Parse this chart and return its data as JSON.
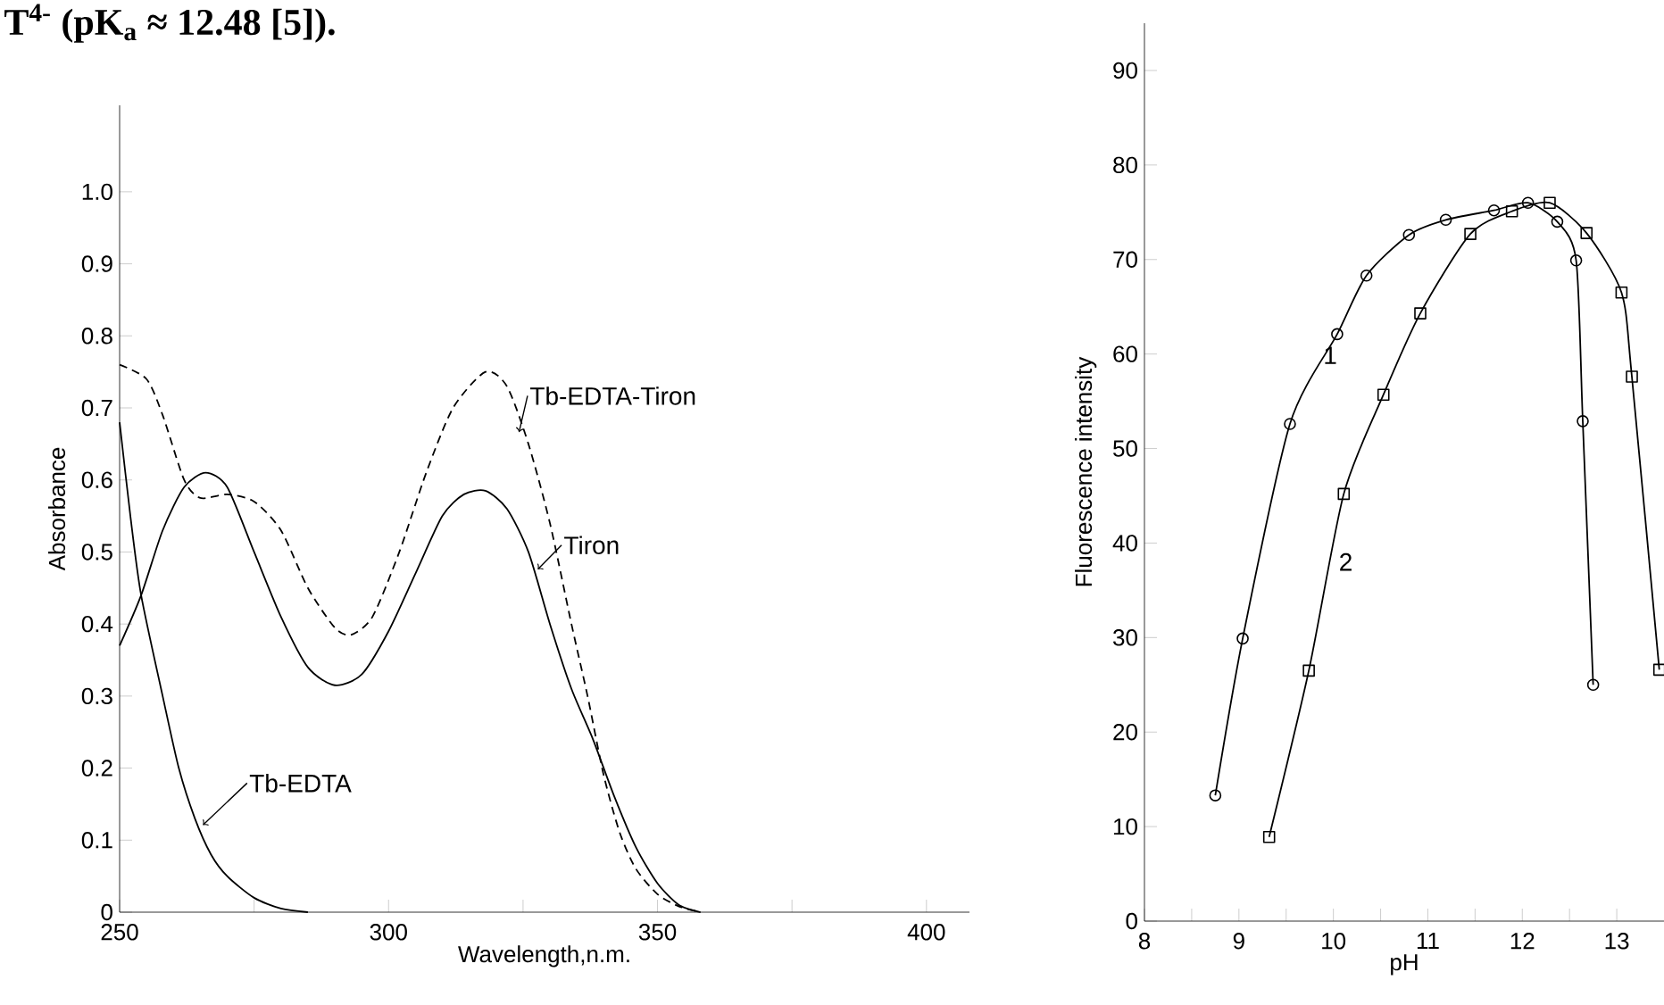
{
  "chart_data": [
    {
      "type": "line",
      "annotations": [
        "T$^{4-}$ (pK$_{a}$ ≈ 12.48 [5])."
      ],
      "xlabel": "Wavelength,n.m.",
      "ylabel": "Absorbance",
      "xlim": [
        250,
        408
      ],
      "xticks": [
        250,
        {
          "value": 275,
          "label": null
        },
        300,
        {
          "value": 325,
          "label": null
        },
        350,
        {
          "value": 375,
          "label": null
        },
        400
      ],
      "ylim": [
        0,
        1.12
      ],
      "yticks": [
        0,
        0.1,
        0.2,
        0.3,
        0.4,
        0.5,
        0.6,
        0.7,
        0.8,
        0.9,
        {
          "value": 1.0,
          "label": "1.0"
        }
      ],
      "series": [
        {
          "name": "Tb-EDTA-Tiron",
          "color": "#000000",
          "line_style": "dashed",
          "x": [
            250,
            255,
            258,
            262,
            265,
            270,
            275,
            280,
            285,
            290,
            293,
            297,
            302,
            307,
            312,
            318,
            322,
            326,
            330,
            334,
            337,
            340,
            343,
            346,
            350,
            354,
            358
          ],
          "values": [
            0.76,
            0.74,
            0.69,
            0.6,
            0.575,
            0.58,
            0.57,
            0.53,
            0.45,
            0.395,
            0.385,
            0.41,
            0.5,
            0.61,
            0.7,
            0.75,
            0.73,
            0.65,
            0.54,
            0.4,
            0.3,
            0.19,
            0.11,
            0.06,
            0.025,
            0.008,
            0
          ]
        },
        {
          "name": "Tiron",
          "color": "#000000",
          "line_style": "solid",
          "x": [
            250,
            254,
            258,
            262,
            266,
            270,
            275,
            280,
            285,
            290,
            295,
            300,
            305,
            310,
            314,
            318,
            322,
            326,
            330,
            334,
            338,
            342,
            346,
            350,
            354,
            358
          ],
          "values": [
            0.37,
            0.44,
            0.53,
            0.59,
            0.61,
            0.59,
            0.5,
            0.41,
            0.34,
            0.315,
            0.33,
            0.39,
            0.47,
            0.55,
            0.58,
            0.585,
            0.56,
            0.5,
            0.4,
            0.31,
            0.24,
            0.16,
            0.09,
            0.04,
            0.01,
            0
          ]
        },
        {
          "name": "Tb-EDTA",
          "color": "#000000",
          "line_style": "solid",
          "x": [
            250,
            252,
            254,
            258,
            261,
            264,
            267,
            270,
            275,
            280,
            285
          ],
          "values": [
            0.68,
            0.55,
            0.44,
            0.3,
            0.2,
            0.13,
            0.08,
            0.05,
            0.02,
            0.005,
            0
          ]
        }
      ]
    },
    {
      "type": "line",
      "xlabel": "pH",
      "ylabel": "Fluorescence intensity",
      "xlim": [
        8,
        13.5
      ],
      "xticks": [
        8,
        {
          "value": 8.5,
          "label": null
        },
        9,
        {
          "value": 9.5,
          "label": null
        },
        10,
        {
          "value": 10.5,
          "label": null
        },
        11,
        {
          "value": 11.5,
          "label": null
        },
        12,
        {
          "value": 12.5,
          "label": null
        },
        13
      ],
      "ylim": [
        0,
        95
      ],
      "yticks": [
        0,
        10,
        20,
        30,
        40,
        50,
        60,
        70,
        80,
        90
      ],
      "series": [
        {
          "name": "1",
          "color": "#000000",
          "marker": "circle",
          "x": [
            8.75,
            9.04,
            9.54,
            10.04,
            10.35,
            10.8,
            11.19,
            11.7,
            12.06,
            12.37,
            12.57,
            12.64,
            12.75
          ],
          "values": [
            13.3,
            29.9,
            52.6,
            62.1,
            68.3,
            72.6,
            74.2,
            75.2,
            76.0,
            74.0,
            69.9,
            52.9,
            25.0
          ]
        },
        {
          "name": "2",
          "color": "#000000",
          "marker": "square",
          "x": [
            9.32,
            9.74,
            10.11,
            10.53,
            10.92,
            11.45,
            11.89,
            12.29,
            12.68,
            13.05,
            13.16,
            13.45
          ],
          "values": [
            8.9,
            26.5,
            45.2,
            55.7,
            64.3,
            72.7,
            75.1,
            76.0,
            72.8,
            66.5,
            57.6,
            26.6
          ]
        }
      ]
    }
  ]
}
